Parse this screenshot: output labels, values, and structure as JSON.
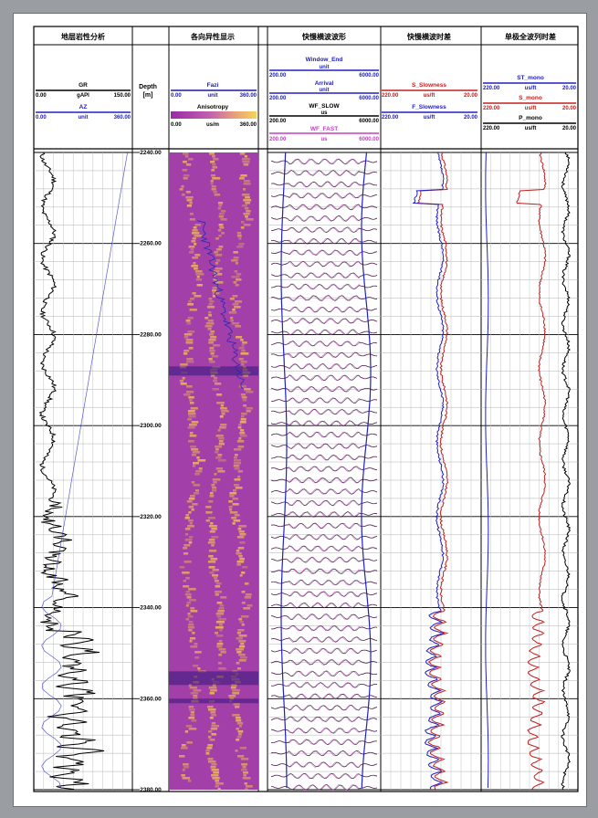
{
  "chart_data": {
    "type": "line",
    "depth_axis": {
      "label": "Depth",
      "unit": "[m]",
      "range": [
        2240,
        2380
      ],
      "ticks": [
        "2240.00",
        "2260.00",
        "2280.00",
        "2300.00",
        "2320.00",
        "2340.00",
        "2360.00",
        "2380.00"
      ],
      "tick_values": [
        2240,
        2260,
        2280,
        2300,
        2320,
        2340,
        2360,
        2380
      ]
    },
    "tracks": [
      {
        "title": "地层岩性分析",
        "curves": [
          {
            "name": "GR",
            "unit": "gAPI",
            "min": "0.00",
            "max": "150.00",
            "color": "#000000"
          },
          {
            "name": "AZ",
            "unit": "unit",
            "min": "0.00",
            "max": "360.00",
            "color": "#2020c0"
          }
        ]
      },
      {
        "title": "各向异性显示",
        "curves": [
          {
            "name": "Fazi",
            "unit": "unit",
            "min": "0.00",
            "max": "360.00",
            "color": "#1a1aa0"
          },
          {
            "name": "Anisotropy",
            "unit": "us/m",
            "min": "0.00",
            "max": "360.00",
            "color": "#c040c0"
          }
        ]
      },
      {
        "title": "快慢横波波形",
        "curves": [
          {
            "name": "Window_End",
            "unit": "unit",
            "min": "200.00",
            "max": "6000.00",
            "color": "#2020c0"
          },
          {
            "name": "Arrival",
            "unit": "unit",
            "min": "200.00",
            "max": "6000.00",
            "color": "#2020c0"
          },
          {
            "name": "WF_SLOW",
            "unit": "us",
            "min": "200.00",
            "max": "6000.00",
            "color": "#000000"
          },
          {
            "name": "WF_FAST",
            "unit": "us",
            "min": "200.00",
            "max": "6000.00",
            "color": "#c040c0"
          }
        ]
      },
      {
        "title": "快慢横波时差",
        "curves": [
          {
            "name": "S_Slowness",
            "unit": "us/ft",
            "min": "220.00",
            "max": "20.00",
            "color": "#c02020"
          },
          {
            "name": "F_Slowness",
            "unit": "us/ft",
            "min": "220.00",
            "max": "20.00",
            "color": "#2020c0"
          }
        ]
      },
      {
        "title": "单极全波列时差",
        "curves": [
          {
            "name": "ST_mono",
            "unit": "us/ft",
            "min": "220.00",
            "max": "20.00",
            "color": "#2020c0"
          },
          {
            "name": "S_mono",
            "unit": "us/ft",
            "min": "220.00",
            "max": "20.00",
            "color": "#c02020"
          },
          {
            "name": "P_mono",
            "unit": "us/ft",
            "min": "220.00",
            "max": "20.00",
            "color": "#000000"
          }
        ]
      }
    ],
    "grid": true,
    "legend": "header"
  },
  "colors": {
    "aniso_bg": "#a23fa8",
    "aniso_streak": "#f0c050",
    "fazi": "#2a2ab0",
    "gr": "#000000",
    "az": "#3030c0",
    "slow_red": "#c02020",
    "fast_blue": "#2020c0",
    "wf_pink": "#c050c0"
  }
}
